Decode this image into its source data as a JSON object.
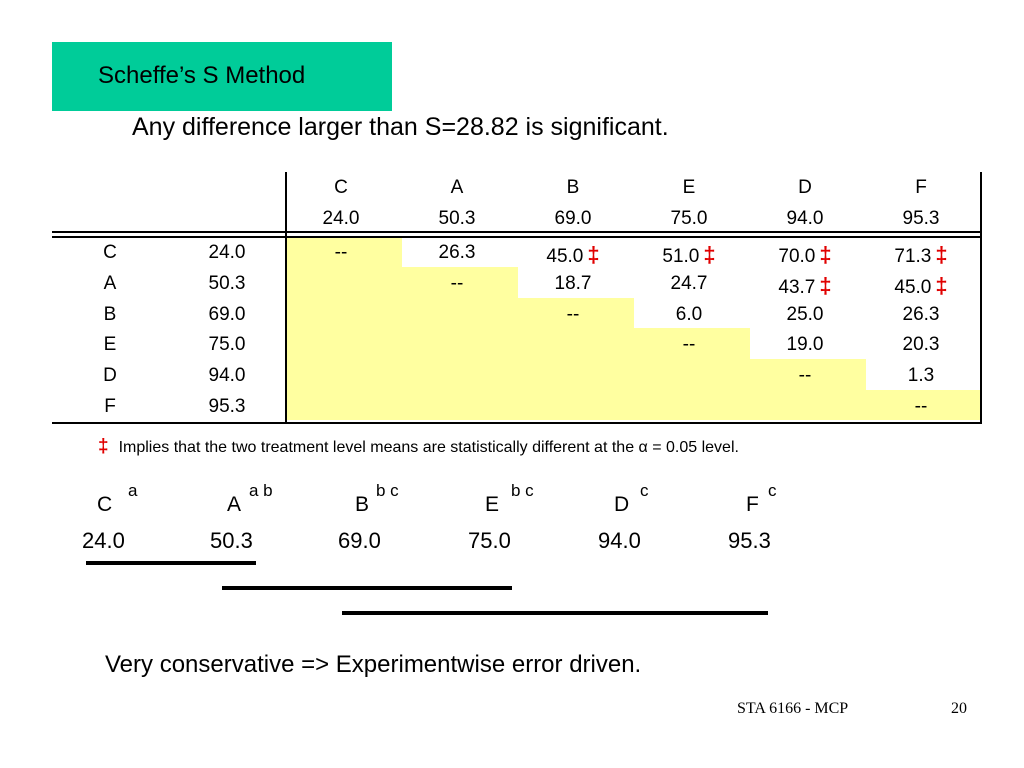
{
  "title": "Scheffe’s S Method",
  "subtitle": "Any difference larger than S=28.82 is significant.",
  "table": {
    "col_labels": [
      "C",
      "A",
      "B",
      "E",
      "D",
      "F"
    ],
    "col_means": [
      "24.0",
      "50.3",
      "69.0",
      "75.0",
      "94.0",
      "95.3"
    ],
    "rows": [
      {
        "label": "C",
        "mean": "24.0",
        "cells": [
          "--",
          "26.3",
          "45.0",
          "51.0",
          "70.0",
          "71.3"
        ],
        "sig": [
          false,
          false,
          true,
          true,
          true,
          true
        ]
      },
      {
        "label": "A",
        "mean": "50.3",
        "cells": [
          "",
          "--",
          "18.7",
          "24.7",
          "43.7",
          "45.0"
        ],
        "sig": [
          false,
          false,
          false,
          false,
          true,
          true
        ]
      },
      {
        "label": "B",
        "mean": "69.0",
        "cells": [
          "",
          "",
          "--",
          "6.0",
          "25.0",
          "26.3"
        ],
        "sig": [
          false,
          false,
          false,
          false,
          false,
          false
        ]
      },
      {
        "label": "E",
        "mean": "75.0",
        "cells": [
          "",
          "",
          "",
          "--",
          "19.0",
          "20.3"
        ],
        "sig": [
          false,
          false,
          false,
          false,
          false,
          false
        ]
      },
      {
        "label": "D",
        "mean": "94.0",
        "cells": [
          "",
          "",
          "",
          "",
          "--",
          "1.3"
        ],
        "sig": [
          false,
          false,
          false,
          false,
          false,
          false
        ]
      },
      {
        "label": "F",
        "mean": "95.3",
        "cells": [
          "",
          "",
          "",
          "",
          "",
          "--"
        ],
        "sig": [
          false,
          false,
          false,
          false,
          false,
          false
        ]
      }
    ],
    "sig_symbol": "‡"
  },
  "note": {
    "symbol": "‡",
    "text": "Implies that the two treatment level means are statistically  different at the α = 0.05 level."
  },
  "groups": [
    {
      "letter": "C",
      "sup": "a",
      "mean": "24.0"
    },
    {
      "letter": "A",
      "sup": "a b",
      "mean": "50.3"
    },
    {
      "letter": "B",
      "sup": "b c",
      "mean": "69.0"
    },
    {
      "letter": "E",
      "sup": "b c",
      "mean": "75.0"
    },
    {
      "letter": "D",
      "sup": "c",
      "mean": "94.0"
    },
    {
      "letter": "F",
      "sup": "c",
      "mean": "95.3"
    }
  ],
  "conclusion": "Very conservative => Experimentwise error driven.",
  "footer": {
    "course": "STA 6166 - MCP",
    "page": "20"
  },
  "colors": {
    "title_bg": "#00cc99",
    "highlight": "#ffffa0",
    "sig": "#e00000"
  }
}
